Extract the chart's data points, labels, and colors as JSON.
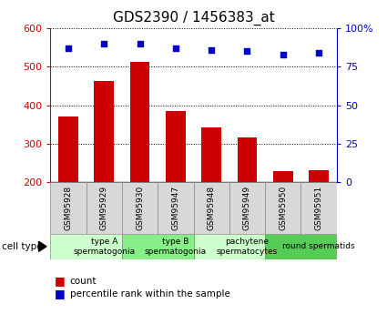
{
  "title": "GDS2390 / 1456383_at",
  "samples": [
    "GSM95928",
    "GSM95929",
    "GSM95930",
    "GSM95947",
    "GSM95948",
    "GSM95949",
    "GSM95950",
    "GSM95951"
  ],
  "counts": [
    370,
    462,
    512,
    385,
    343,
    316,
    228,
    232
  ],
  "percentiles": [
    87,
    90,
    90,
    87,
    86,
    85,
    83,
    84
  ],
  "ylim_left": [
    200,
    600
  ],
  "ylim_right": [
    0,
    100
  ],
  "yticks_left": [
    200,
    300,
    400,
    500,
    600
  ],
  "yticks_right": [
    0,
    25,
    50,
    75,
    100
  ],
  "bar_color": "#cc0000",
  "dot_color": "#0000cc",
  "cell_types": [
    {
      "label": "type A\nspermatogonia",
      "start": 0,
      "end": 2,
      "color": "#ccffcc"
    },
    {
      "label": "type B\nspermatogonia",
      "start": 2,
      "end": 4,
      "color": "#88ee88"
    },
    {
      "label": "pachytene\nspermatocytes",
      "start": 4,
      "end": 6,
      "color": "#ccffcc"
    },
    {
      "label": "round spermatids",
      "start": 6,
      "end": 8,
      "color": "#55cc55"
    }
  ],
  "tick_label_color_left": "#cc0000",
  "tick_label_color_right": "#0000cc",
  "bar_width": 0.55,
  "cell_type_label": "cell type",
  "legend_count_label": "count",
  "legend_pct_label": "percentile rank within the sample",
  "title_fontsize": 11,
  "tick_fontsize": 8,
  "sample_fontsize": 6.5,
  "celltype_fontsize": 6.5,
  "sample_box_color": "#d8d8d8"
}
